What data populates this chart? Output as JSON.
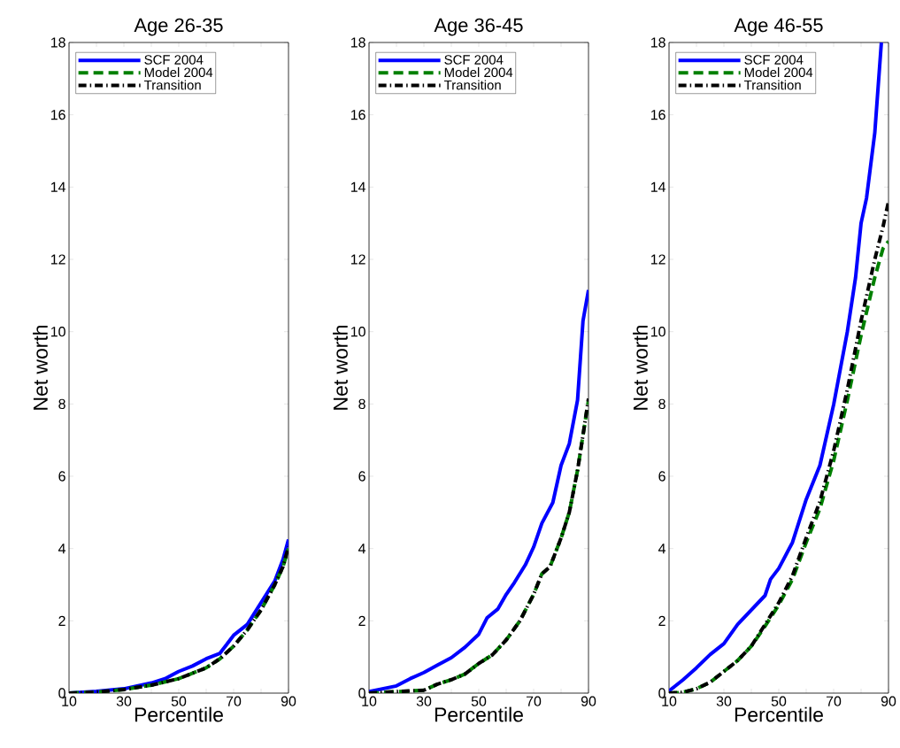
{
  "chart_data": [
    {
      "type": "line",
      "title": "Age 26-35",
      "xlabel": "Percentile",
      "ylabel": "Net worth",
      "xlim": [
        10,
        90
      ],
      "ylim": [
        0,
        18
      ],
      "xticks": [
        10,
        {
          "value": 20,
          "label": null
        },
        30,
        {
          "value": 40,
          "label": null
        },
        50,
        {
          "value": 60,
          "label": null
        },
        70,
        {
          "value": 80,
          "label": null
        },
        90
      ],
      "yticks": [
        0,
        2,
        4,
        6,
        8,
        10,
        12,
        14,
        16,
        18
      ],
      "legend": "top left",
      "series": [
        {
          "name": "SCF 2004",
          "color": "#0000ff",
          "line_style": "solid",
          "x": [
            10,
            20,
            30,
            40,
            45,
            50,
            55,
            60,
            65,
            70,
            75,
            80,
            85,
            88,
            90
          ],
          "values": [
            0,
            0.05,
            0.12,
            0.28,
            0.4,
            0.6,
            0.75,
            0.95,
            1.1,
            1.6,
            1.9,
            2.5,
            3.1,
            3.7,
            4.25
          ]
        },
        {
          "name": "Model 2004",
          "color": "#008000",
          "line_style": "dashed",
          "x": [
            10,
            20,
            30,
            40,
            50,
            55,
            60,
            65,
            70,
            75,
            80,
            85,
            88,
            90
          ],
          "values": [
            0,
            0.03,
            0.1,
            0.22,
            0.4,
            0.55,
            0.7,
            0.95,
            1.3,
            1.75,
            2.3,
            3.0,
            3.5,
            4.0
          ]
        },
        {
          "name": "Transition",
          "color": "#000000",
          "line_style": "dashdot",
          "x": [
            10,
            20,
            30,
            40,
            50,
            55,
            60,
            65,
            70,
            75,
            80,
            85,
            88,
            90
          ],
          "values": [
            0,
            0.03,
            0.1,
            0.22,
            0.4,
            0.55,
            0.7,
            0.95,
            1.3,
            1.75,
            2.3,
            3.0,
            3.5,
            4.05
          ]
        }
      ]
    },
    {
      "type": "line",
      "title": "Age 36-45",
      "xlabel": "Percentile",
      "ylabel": "Net worth",
      "xlim": [
        10,
        90
      ],
      "ylim": [
        0,
        18
      ],
      "xticks": [
        10,
        {
          "value": 20,
          "label": null
        },
        30,
        {
          "value": 40,
          "label": null
        },
        50,
        {
          "value": 60,
          "label": null
        },
        70,
        {
          "value": 80,
          "label": null
        },
        90
      ],
      "yticks": [
        0,
        2,
        4,
        6,
        8,
        10,
        12,
        14,
        16,
        18
      ],
      "legend": "top left",
      "series": [
        {
          "name": "SCF 2004",
          "color": "#0000ff",
          "line_style": "solid",
          "x": [
            10,
            20,
            25,
            30,
            35,
            40,
            45,
            50,
            53,
            57,
            60,
            63,
            67,
            70,
            73,
            77,
            80,
            83,
            86,
            88,
            90
          ],
          "values": [
            0.04,
            0.2,
            0.4,
            0.57,
            0.78,
            0.98,
            1.27,
            1.63,
            2.08,
            2.33,
            2.73,
            3.06,
            3.55,
            4.04,
            4.7,
            5.27,
            6.3,
            6.9,
            8.1,
            10.3,
            11.15
          ]
        },
        {
          "name": "Model 2004",
          "color": "#008000",
          "line_style": "dashed",
          "x": [
            10,
            20,
            30,
            35,
            40,
            45,
            50,
            55,
            60,
            65,
            70,
            73,
            76,
            80,
            83,
            86,
            88,
            90
          ],
          "values": [
            0,
            0.04,
            0.08,
            0.25,
            0.37,
            0.53,
            0.82,
            1.06,
            1.47,
            2.0,
            2.73,
            3.3,
            3.5,
            4.29,
            5.0,
            6.16,
            7.14,
            8.1
          ]
        },
        {
          "name": "Transition",
          "color": "#000000",
          "line_style": "dashdot",
          "x": [
            10,
            20,
            30,
            35,
            40,
            45,
            50,
            55,
            60,
            65,
            70,
            73,
            76,
            80,
            83,
            86,
            88,
            90
          ],
          "values": [
            0,
            0.04,
            0.08,
            0.25,
            0.37,
            0.53,
            0.82,
            1.06,
            1.47,
            2.0,
            2.73,
            3.3,
            3.5,
            4.29,
            5.0,
            6.16,
            7.14,
            8.15
          ]
        }
      ]
    },
    {
      "type": "line",
      "title": "Age 46-55",
      "xlabel": "Percentile",
      "ylabel": "Net worth",
      "xlim": [
        10,
        90
      ],
      "ylim": [
        0,
        18
      ],
      "xticks": [
        10,
        {
          "value": 20,
          "label": null
        },
        30,
        {
          "value": 40,
          "label": null
        },
        50,
        {
          "value": 60,
          "label": null
        },
        70,
        {
          "value": 80,
          "label": null
        },
        90
      ],
      "yticks": [
        0,
        2,
        4,
        6,
        8,
        10,
        12,
        14,
        16,
        18
      ],
      "legend": "top left",
      "series": [
        {
          "name": "SCF 2004",
          "color": "#0000ff",
          "line_style": "solid",
          "x": [
            10,
            15,
            20,
            25,
            30,
            35,
            40,
            45,
            47,
            50,
            55,
            60,
            65,
            70,
            75,
            78,
            80,
            82,
            85,
            87.4
          ],
          "values": [
            0.06,
            0.36,
            0.7,
            1.07,
            1.37,
            1.9,
            2.3,
            2.7,
            3.15,
            3.45,
            4.17,
            5.36,
            6.3,
            7.98,
            10.0,
            11.5,
            13.0,
            13.7,
            15.5,
            18
          ]
        },
        {
          "name": "Model 2004",
          "color": "#008000",
          "line_style": "dashed",
          "x": [
            10,
            15,
            20,
            25,
            30,
            35,
            40,
            45,
            50,
            55,
            60,
            65,
            70,
            75,
            80,
            85,
            88,
            90
          ],
          "values": [
            0,
            0.02,
            0.12,
            0.3,
            0.6,
            0.9,
            1.3,
            1.85,
            2.44,
            3.15,
            4.17,
            5.1,
            6.43,
            8.1,
            9.9,
            11.5,
            12.3,
            12.5
          ]
        },
        {
          "name": "Transition",
          "color": "#000000",
          "line_style": "dashdot",
          "x": [
            10,
            15,
            20,
            25,
            30,
            35,
            40,
            45,
            50,
            55,
            60,
            65,
            70,
            75,
            80,
            85,
            88,
            90
          ],
          "values": [
            0,
            0.02,
            0.12,
            0.3,
            0.6,
            0.9,
            1.3,
            1.9,
            2.5,
            3.25,
            4.3,
            5.3,
            6.7,
            8.4,
            10.3,
            12.0,
            12.9,
            13.6
          ]
        }
      ]
    }
  ]
}
